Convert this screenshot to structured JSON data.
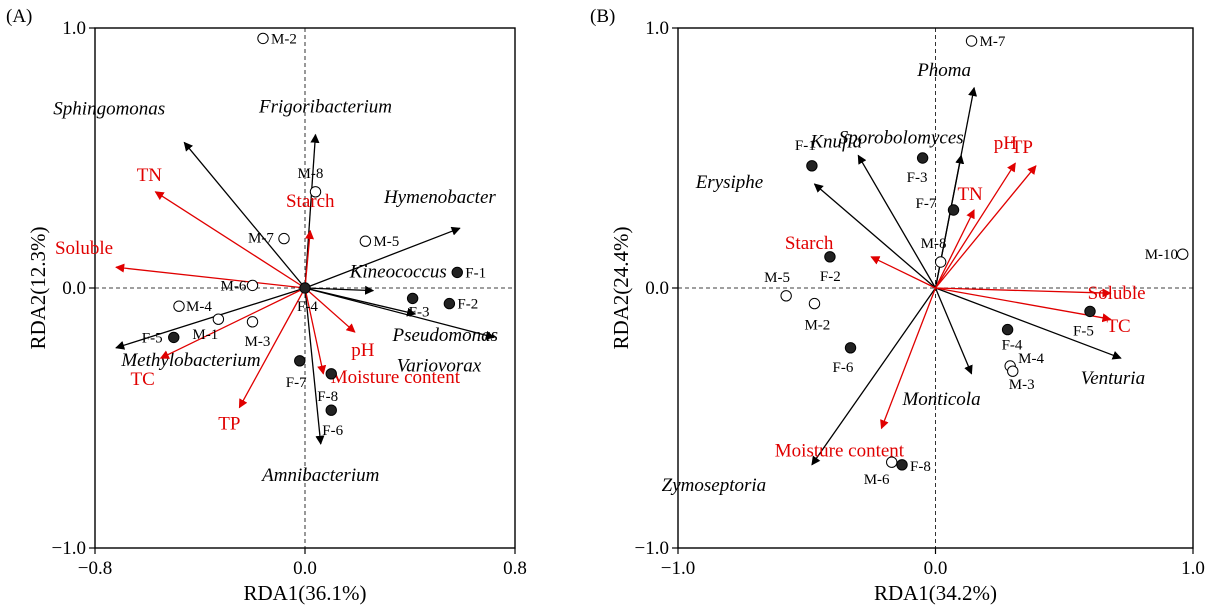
{
  "chart_data": [
    {
      "panel": "(A)",
      "type": "scatter",
      "xlabel": "RDA1(36.1%)",
      "ylabel": "RDA2(12.3%)",
      "xlim": [
        -0.8,
        0.8
      ],
      "ylim": [
        -1.0,
        1.0
      ],
      "xticks": [
        {
          "v": -0.8,
          "label": "−0.8"
        },
        {
          "v": 0.0,
          "label": "0.0"
        },
        {
          "v": 0.8,
          "label": "0.8"
        }
      ],
      "yticks": [
        {
          "v": -1.0,
          "label": "−1.0"
        },
        {
          "v": 0.0,
          "label": "0.0"
        },
        {
          "v": 1.0,
          "label": "1.0"
        }
      ],
      "arrows_black": [
        {
          "name": "Sphingomonas",
          "x": -0.46,
          "y": 0.56
        },
        {
          "name": "Frigoribacterium",
          "x": 0.04,
          "y": 0.59
        },
        {
          "name": "Hymenobacter",
          "x": 0.59,
          "y": 0.23
        },
        {
          "name": "Kineococcus",
          "x": 0.26,
          "y": -0.01
        },
        {
          "name": "Pseudomonas",
          "x": 0.42,
          "y": -0.1
        },
        {
          "name": "Variovorax",
          "x": 0.72,
          "y": -0.19
        },
        {
          "name": "Methylobacterium",
          "x": -0.72,
          "y": -0.23
        },
        {
          "name": "Amnibacterium",
          "x": 0.06,
          "y": -0.6
        }
      ],
      "arrows_red": [
        {
          "name": "TN",
          "x": -0.57,
          "y": 0.37
        },
        {
          "name": "Starch",
          "x": 0.02,
          "y": 0.22
        },
        {
          "name": "Soluble",
          "x": -0.72,
          "y": 0.08
        },
        {
          "name": "pH",
          "x": 0.19,
          "y": -0.17
        },
        {
          "name": "Moisture content",
          "x": 0.07,
          "y": -0.33
        },
        {
          "name": "TC",
          "x": -0.55,
          "y": -0.27
        },
        {
          "name": "TP",
          "x": -0.25,
          "y": -0.46
        }
      ],
      "points": [
        {
          "name": "M-2",
          "x": -0.16,
          "y": 0.96,
          "group": "M"
        },
        {
          "name": "M-8",
          "x": 0.04,
          "y": 0.37,
          "group": "M"
        },
        {
          "name": "M-7",
          "x": -0.08,
          "y": 0.19,
          "group": "M"
        },
        {
          "name": "M-5",
          "x": 0.23,
          "y": 0.18,
          "group": "M"
        },
        {
          "name": "M-6",
          "x": -0.2,
          "y": 0.01,
          "group": "M"
        },
        {
          "name": "M-4",
          "x": -0.48,
          "y": -0.07,
          "group": "M"
        },
        {
          "name": "M-1",
          "x": -0.33,
          "y": -0.12,
          "group": "M"
        },
        {
          "name": "M-3",
          "x": -0.2,
          "y": -0.13,
          "group": "M"
        },
        {
          "name": "F-1",
          "x": 0.58,
          "y": 0.06,
          "group": "F"
        },
        {
          "name": "F-4",
          "x": 0.0,
          "y": 0.0,
          "group": "F"
        },
        {
          "name": "F-3",
          "x": 0.41,
          "y": -0.04,
          "group": "F"
        },
        {
          "name": "F-2",
          "x": 0.55,
          "y": -0.06,
          "group": "F"
        },
        {
          "name": "F-5",
          "x": -0.5,
          "y": -0.19,
          "group": "F"
        },
        {
          "name": "F-7",
          "x": -0.02,
          "y": -0.28,
          "group": "F"
        },
        {
          "name": "F-8",
          "x": 0.1,
          "y": -0.33,
          "group": "F"
        },
        {
          "name": "F-6",
          "x": 0.1,
          "y": -0.47,
          "group": "F"
        }
      ]
    },
    {
      "panel": "(B)",
      "type": "scatter",
      "xlabel": "RDA1(34.2%)",
      "ylabel": "RDA2(24.4%)",
      "xlim": [
        -1.0,
        1.0
      ],
      "ylim": [
        -1.0,
        1.0
      ],
      "xticks": [
        {
          "v": -1.0,
          "label": "−1.0"
        },
        {
          "v": 0.0,
          "label": "0.0"
        },
        {
          "v": 1.0,
          "label": "1.0"
        }
      ],
      "yticks": [
        {
          "v": -1.0,
          "label": "−1.0"
        },
        {
          "v": 0.0,
          "label": "0.0"
        },
        {
          "v": 1.0,
          "label": "1.0"
        }
      ],
      "arrows_black": [
        {
          "name": "Phoma",
          "x": 0.15,
          "y": 0.77
        },
        {
          "name": "Sporobolomyces",
          "x": 0.1,
          "y": 0.51
        },
        {
          "name": "Knufia",
          "x": -0.3,
          "y": 0.51
        },
        {
          "name": "Erysiphe",
          "x": -0.47,
          "y": 0.4
        },
        {
          "name": "Venturia",
          "x": 0.72,
          "y": -0.27
        },
        {
          "name": "Monticola",
          "x": 0.14,
          "y": -0.33
        },
        {
          "name": "Zymoseptoria",
          "x": -0.48,
          "y": -0.68
        }
      ],
      "arrows_red": [
        {
          "name": "pH",
          "x": 0.31,
          "y": 0.48
        },
        {
          "name": "TP",
          "x": 0.39,
          "y": 0.47
        },
        {
          "name": "TN",
          "x": 0.15,
          "y": 0.3
        },
        {
          "name": "Starch",
          "x": -0.25,
          "y": 0.12
        },
        {
          "name": "Soluble",
          "x": 0.68,
          "y": -0.02
        },
        {
          "name": "TC",
          "x": 0.68,
          "y": -0.12
        },
        {
          "name": "Moisture content",
          "x": -0.21,
          "y": -0.54
        }
      ],
      "points": [
        {
          "name": "M-7",
          "x": 0.14,
          "y": 0.95,
          "group": "M"
        },
        {
          "name": "M-8",
          "x": 0.02,
          "y": 0.1,
          "group": "M"
        },
        {
          "name": "M-10",
          "x": 0.96,
          "y": 0.13,
          "group": "M"
        },
        {
          "name": "M-5",
          "x": -0.58,
          "y": -0.03,
          "group": "M"
        },
        {
          "name": "M-2",
          "x": -0.47,
          "y": -0.06,
          "group": "M"
        },
        {
          "name": "M-4",
          "x": 0.29,
          "y": -0.3,
          "group": "M"
        },
        {
          "name": "M-3",
          "x": 0.3,
          "y": -0.32,
          "group": "M"
        },
        {
          "name": "M-6",
          "x": -0.17,
          "y": -0.67,
          "group": "M"
        },
        {
          "name": "F-1",
          "x": -0.48,
          "y": 0.47,
          "group": "F"
        },
        {
          "name": "F-3",
          "x": -0.05,
          "y": 0.5,
          "group": "F"
        },
        {
          "name": "F-7",
          "x": 0.07,
          "y": 0.3,
          "group": "F"
        },
        {
          "name": "F-2",
          "x": -0.41,
          "y": 0.12,
          "group": "F"
        },
        {
          "name": "F-5",
          "x": 0.6,
          "y": -0.09,
          "group": "F"
        },
        {
          "name": "F-4",
          "x": 0.28,
          "y": -0.16,
          "group": "F"
        },
        {
          "name": "F-6",
          "x": -0.33,
          "y": -0.23,
          "group": "F"
        },
        {
          "name": "F-8",
          "x": -0.13,
          "y": -0.68,
          "group": "F"
        }
      ]
    }
  ],
  "colors": {
    "env": "#e00000",
    "taxa": "#000000"
  }
}
